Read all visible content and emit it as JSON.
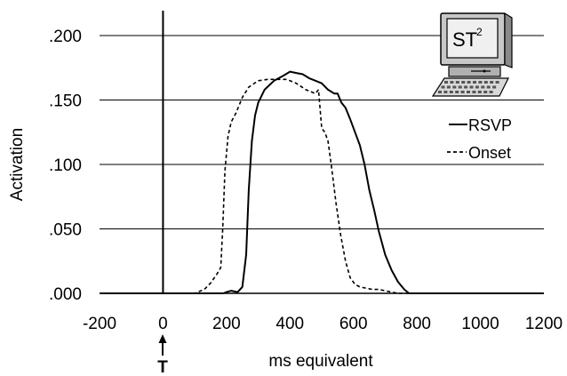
{
  "chart_data": {
    "type": "line",
    "xlabel": "ms equivalent",
    "ylabel": "Activation",
    "xlim": [
      -200,
      1200
    ],
    "ylim": [
      0,
      0.2
    ],
    "x_ticks": [
      "-200",
      "0",
      "200",
      "400",
      "600",
      "800",
      "1000",
      "1200"
    ],
    "y_ticks": [
      ".000",
      ".050",
      ".100",
      ".150",
      ".200"
    ],
    "grid": "horizontal",
    "legend_position": "right",
    "target_marker": {
      "x": 0,
      "label": "T"
    },
    "logo": {
      "text": "ST",
      "sup": "2"
    },
    "series": [
      {
        "name": "RSVP",
        "style": "solid",
        "color": "#000000",
        "points": [
          [
            -200,
            0
          ],
          [
            190,
            0
          ],
          [
            200,
            0.001
          ],
          [
            215,
            0.002
          ],
          [
            235,
            0.001
          ],
          [
            250,
            0.005
          ],
          [
            262,
            0.03
          ],
          [
            270,
            0.08
          ],
          [
            280,
            0.118
          ],
          [
            290,
            0.138
          ],
          [
            300,
            0.148
          ],
          [
            320,
            0.158
          ],
          [
            350,
            0.165
          ],
          [
            380,
            0.169
          ],
          [
            400,
            0.172
          ],
          [
            420,
            0.171
          ],
          [
            440,
            0.17
          ],
          [
            460,
            0.167
          ],
          [
            480,
            0.165
          ],
          [
            500,
            0.163
          ],
          [
            520,
            0.158
          ],
          [
            540,
            0.155
          ],
          [
            550,
            0.155
          ],
          [
            562,
            0.148
          ],
          [
            575,
            0.144
          ],
          [
            590,
            0.135
          ],
          [
            605,
            0.125
          ],
          [
            620,
            0.115
          ],
          [
            635,
            0.1
          ],
          [
            650,
            0.08
          ],
          [
            665,
            0.065
          ],
          [
            680,
            0.048
          ],
          [
            700,
            0.03
          ],
          [
            720,
            0.018
          ],
          [
            740,
            0.009
          ],
          [
            760,
            0.003
          ],
          [
            775,
            0
          ],
          [
            1200,
            0
          ]
        ]
      },
      {
        "name": "Onset",
        "style": "dashed",
        "color": "#000000",
        "points": [
          [
            -200,
            0
          ],
          [
            100,
            0
          ],
          [
            130,
            0.003
          ],
          [
            150,
            0.008
          ],
          [
            170,
            0.015
          ],
          [
            182,
            0.02
          ],
          [
            188,
            0.05
          ],
          [
            195,
            0.095
          ],
          [
            205,
            0.122
          ],
          [
            215,
            0.133
          ],
          [
            230,
            0.14
          ],
          [
            250,
            0.152
          ],
          [
            270,
            0.16
          ],
          [
            300,
            0.165
          ],
          [
            330,
            0.166
          ],
          [
            360,
            0.166
          ],
          [
            390,
            0.166
          ],
          [
            420,
            0.163
          ],
          [
            450,
            0.158
          ],
          [
            470,
            0.156
          ],
          [
            480,
            0.155
          ],
          [
            490,
            0.158
          ],
          [
            500,
            0.128
          ],
          [
            510,
            0.125
          ],
          [
            520,
            0.118
          ],
          [
            530,
            0.1
          ],
          [
            545,
            0.07
          ],
          [
            560,
            0.045
          ],
          [
            575,
            0.025
          ],
          [
            590,
            0.012
          ],
          [
            605,
            0.007
          ],
          [
            620,
            0.005
          ],
          [
            640,
            0.004
          ],
          [
            660,
            0.003
          ],
          [
            680,
            0.003
          ],
          [
            700,
            0.002
          ],
          [
            720,
            0.001
          ],
          [
            740,
            0
          ],
          [
            1200,
            0
          ]
        ]
      }
    ]
  }
}
